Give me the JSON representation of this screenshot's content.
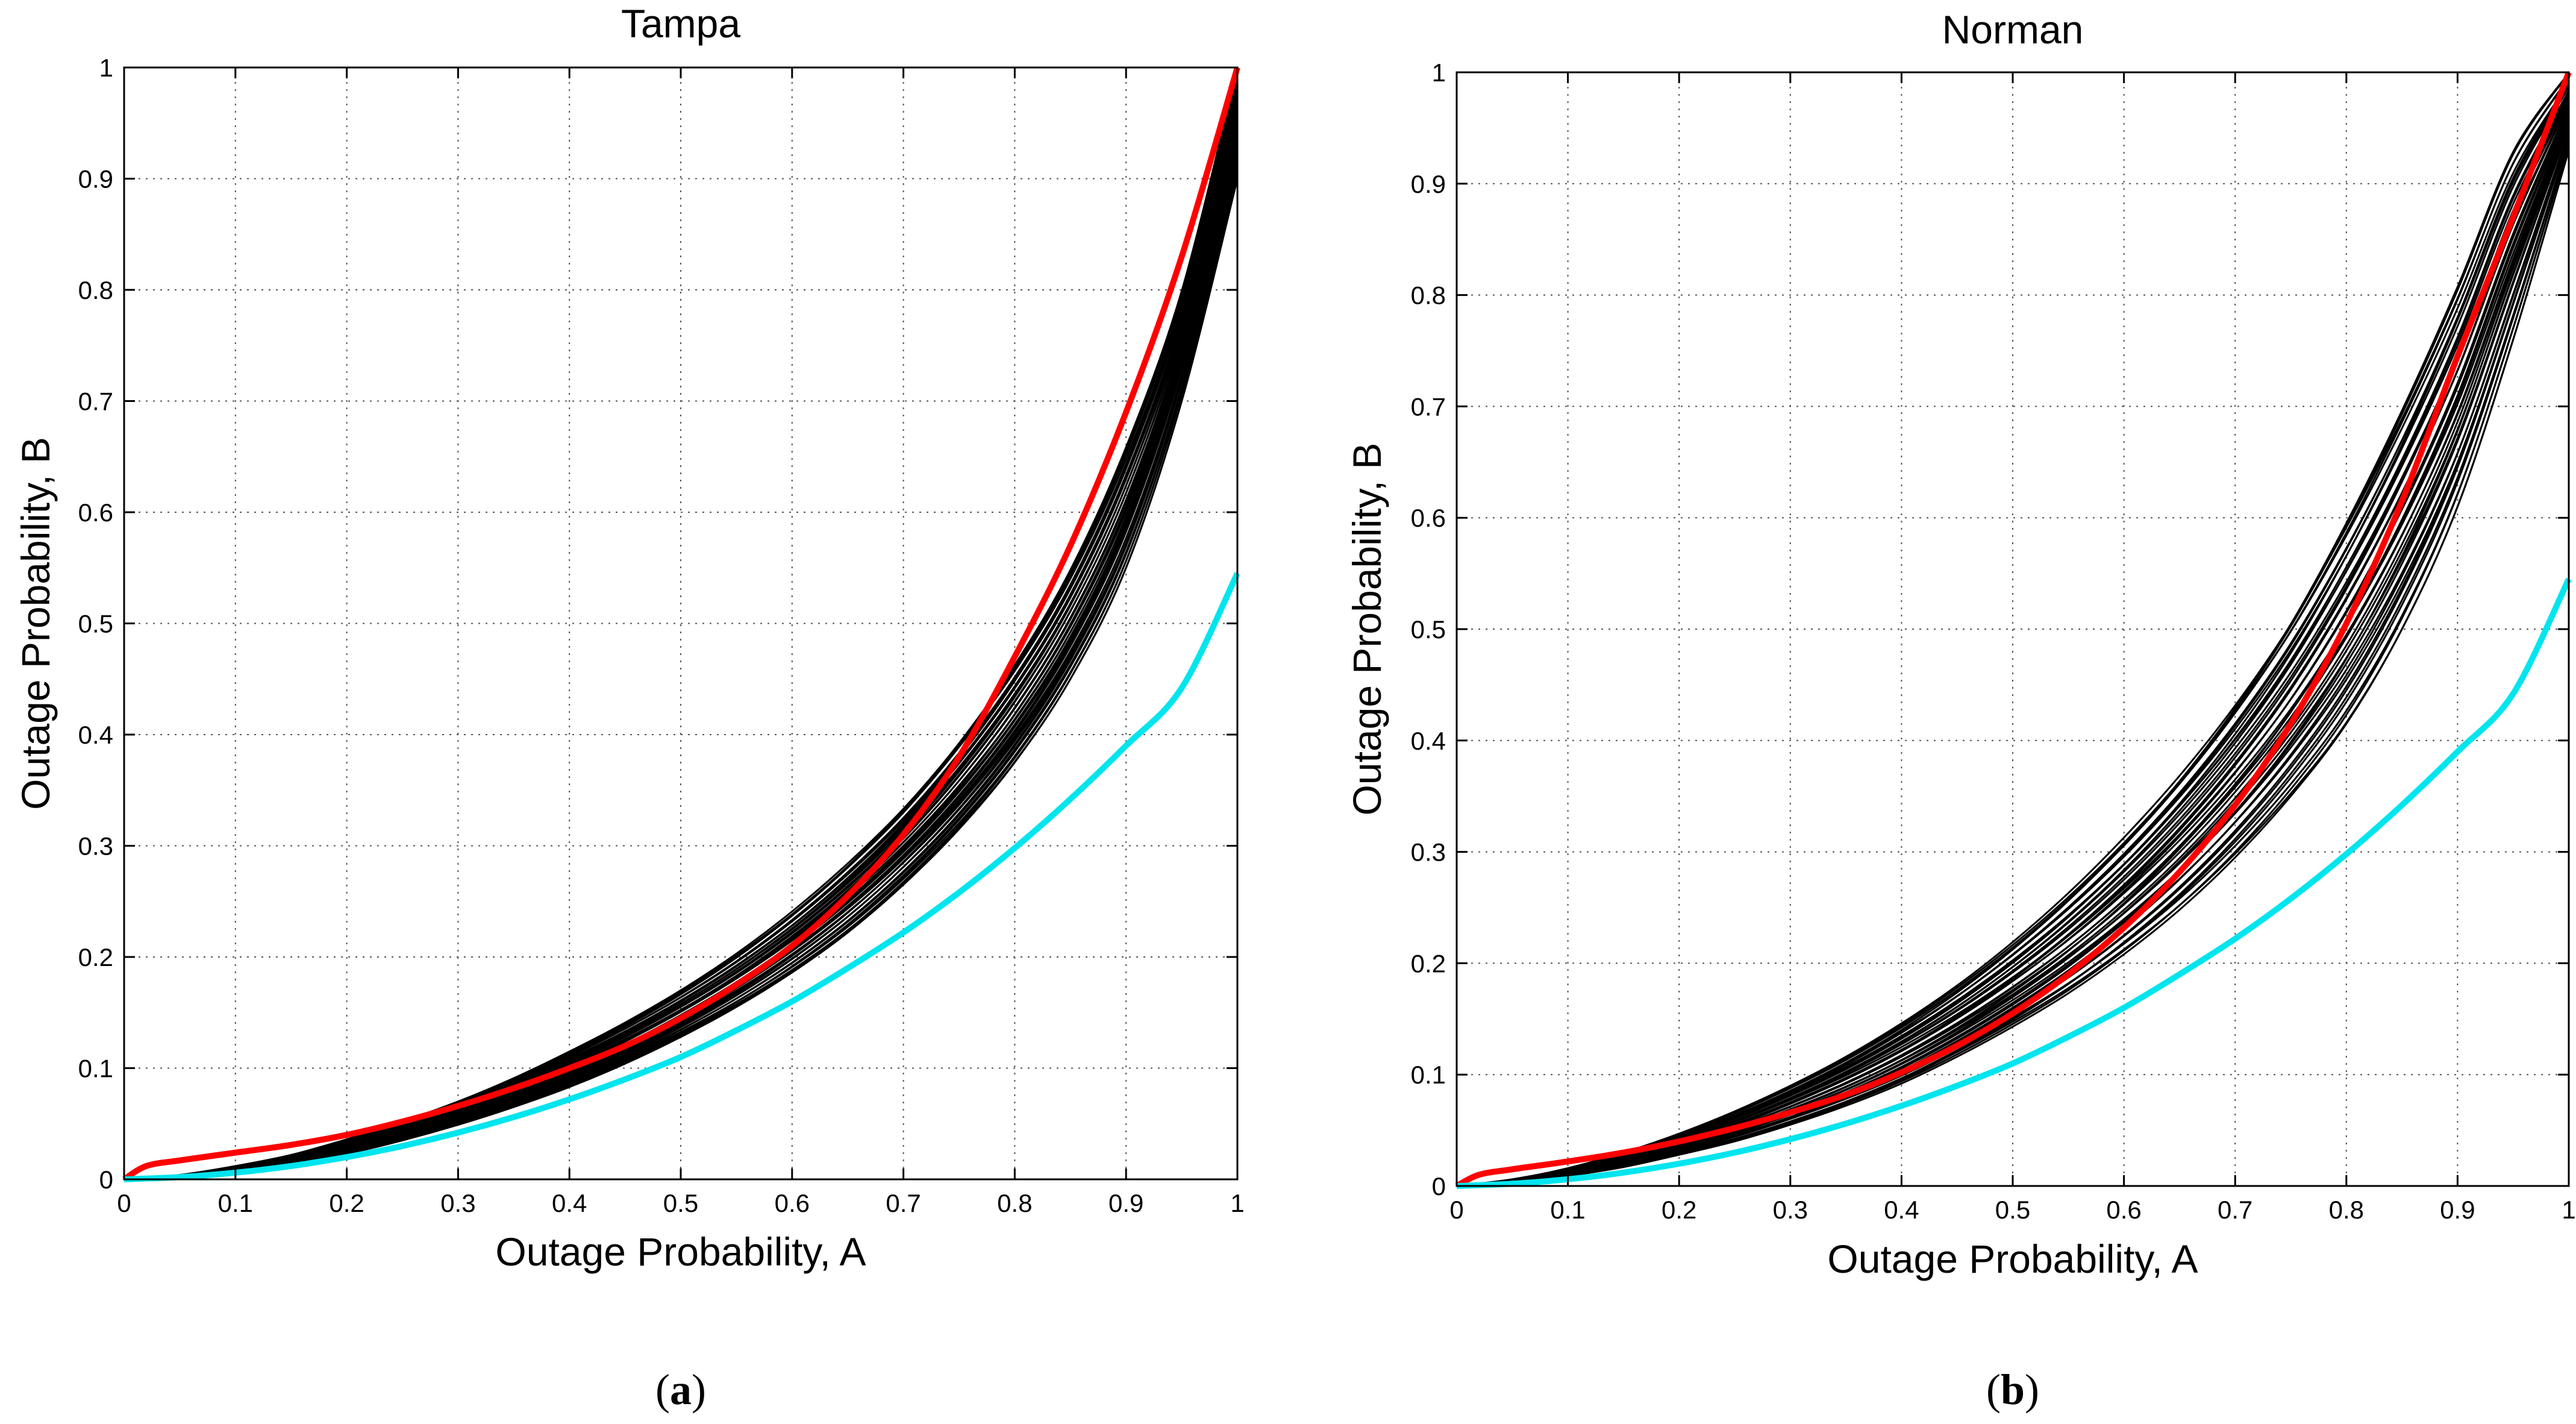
{
  "chart_data": [
    {
      "type": "line",
      "title": "Tampa",
      "xlabel": "Outage Probability, A",
      "ylabel": "Outage Probability, B",
      "xlim": [
        0,
        1
      ],
      "ylim": [
        0,
        1
      ],
      "grid": true,
      "caption": "a",
      "xticks": [
        "0",
        "0.1",
        "0.2",
        "0.3",
        "0.4",
        "0.5",
        "0.6",
        "0.7",
        "0.8",
        "0.9",
        "1"
      ],
      "yticks": [
        "0",
        "0.1",
        "0.2",
        "0.3",
        "0.4",
        "0.5",
        "0.6",
        "0.7",
        "0.8",
        "0.9",
        "1"
      ],
      "series": [
        {
          "name": "red",
          "color": "#ff0000",
          "x": [
            0,
            0.02,
            0.05,
            0.1,
            0.15,
            0.2,
            0.25,
            0.3,
            0.35,
            0.4,
            0.45,
            0.5,
            0.55,
            0.6,
            0.65,
            0.7,
            0.75,
            0.8,
            0.85,
            0.9,
            0.95,
            1.0
          ],
          "y": [
            0,
            0.012,
            0.017,
            0.024,
            0.031,
            0.04,
            0.052,
            0.066,
            0.082,
            0.1,
            0.12,
            0.145,
            0.175,
            0.21,
            0.255,
            0.31,
            0.38,
            0.47,
            0.57,
            0.69,
            0.83,
            1.0
          ]
        },
        {
          "name": "cyan",
          "color": "#00e5ee",
          "x": [
            0,
            0.05,
            0.1,
            0.15,
            0.2,
            0.25,
            0.3,
            0.35,
            0.4,
            0.45,
            0.5,
            0.55,
            0.6,
            0.65,
            0.7,
            0.75,
            0.8,
            0.85,
            0.9,
            0.95,
            1.0
          ],
          "y": [
            0,
            0.002,
            0.006,
            0.012,
            0.02,
            0.03,
            0.042,
            0.056,
            0.072,
            0.09,
            0.11,
            0.134,
            0.16,
            0.19,
            0.222,
            0.258,
            0.298,
            0.342,
            0.39,
            0.442,
            0.545
          ]
        }
      ],
      "ensemble": {
        "color": "#000000",
        "count": 40,
        "x": [
          0,
          0.05,
          0.1,
          0.15,
          0.2,
          0.25,
          0.3,
          0.35,
          0.4,
          0.45,
          0.5,
          0.55,
          0.6,
          0.65,
          0.7,
          0.75,
          0.8,
          0.85,
          0.9,
          0.95,
          1.0
        ],
        "y_low": [
          0,
          0.002,
          0.007,
          0.014,
          0.023,
          0.035,
          0.049,
          0.065,
          0.083,
          0.104,
          0.128,
          0.155,
          0.186,
          0.222,
          0.265,
          0.315,
          0.375,
          0.45,
          0.55,
          0.7,
          0.9
        ],
        "y_high": [
          0,
          0.004,
          0.012,
          0.022,
          0.036,
          0.052,
          0.07,
          0.091,
          0.115,
          0.141,
          0.17,
          0.203,
          0.241,
          0.285,
          0.335,
          0.395,
          0.465,
          0.55,
          0.66,
          0.8,
          1.0
        ]
      }
    },
    {
      "type": "line",
      "title": "Norman",
      "xlabel": "Outage Probability, A",
      "ylabel": "Outage Probability, B",
      "xlim": [
        0,
        1
      ],
      "ylim": [
        0,
        1
      ],
      "grid": true,
      "caption": "b",
      "xticks": [
        "0",
        "0.1",
        "0.2",
        "0.3",
        "0.4",
        "0.5",
        "0.6",
        "0.7",
        "0.8",
        "0.9",
        "1"
      ],
      "yticks": [
        "0",
        "0.1",
        "0.2",
        "0.3",
        "0.4",
        "0.5",
        "0.6",
        "0.7",
        "0.8",
        "0.9",
        "1"
      ],
      "series": [
        {
          "name": "red",
          "color": "#ff0000",
          "x": [
            0,
            0.02,
            0.05,
            0.1,
            0.15,
            0.2,
            0.25,
            0.3,
            0.35,
            0.4,
            0.45,
            0.5,
            0.55,
            0.6,
            0.65,
            0.7,
            0.75,
            0.8,
            0.85,
            0.9,
            0.95,
            1.0
          ],
          "y": [
            0,
            0.01,
            0.015,
            0.022,
            0.03,
            0.04,
            0.052,
            0.066,
            0.082,
            0.102,
            0.126,
            0.155,
            0.19,
            0.232,
            0.282,
            0.342,
            0.415,
            0.505,
            0.615,
            0.745,
            0.87,
            1.0
          ]
        },
        {
          "name": "cyan",
          "color": "#00e5ee",
          "x": [
            0,
            0.05,
            0.1,
            0.15,
            0.2,
            0.25,
            0.3,
            0.35,
            0.4,
            0.45,
            0.5,
            0.55,
            0.6,
            0.65,
            0.7,
            0.75,
            0.8,
            0.85,
            0.9,
            0.95,
            1.0
          ],
          "y": [
            0,
            0.002,
            0.006,
            0.012,
            0.02,
            0.03,
            0.042,
            0.056,
            0.072,
            0.09,
            0.11,
            0.134,
            0.16,
            0.19,
            0.222,
            0.258,
            0.298,
            0.342,
            0.39,
            0.442,
            0.545
          ]
        }
      ],
      "ensemble": {
        "color": "#000000",
        "count": 40,
        "x": [
          0,
          0.05,
          0.1,
          0.15,
          0.2,
          0.25,
          0.3,
          0.35,
          0.4,
          0.45,
          0.5,
          0.55,
          0.6,
          0.65,
          0.7,
          0.75,
          0.8,
          0.85,
          0.9,
          0.95,
          1.0
        ],
        "y_low": [
          0,
          0.003,
          0.009,
          0.017,
          0.028,
          0.04,
          0.055,
          0.072,
          0.092,
          0.116,
          0.143,
          0.173,
          0.208,
          0.248,
          0.295,
          0.35,
          0.415,
          0.5,
          0.61,
          0.76,
          0.93
        ],
        "y_high": [
          0,
          0.006,
          0.016,
          0.03,
          0.047,
          0.067,
          0.09,
          0.116,
          0.146,
          0.18,
          0.219,
          0.263,
          0.313,
          0.37,
          0.435,
          0.51,
          0.6,
          0.7,
          0.81,
          0.93,
          1.0
        ]
      }
    }
  ]
}
